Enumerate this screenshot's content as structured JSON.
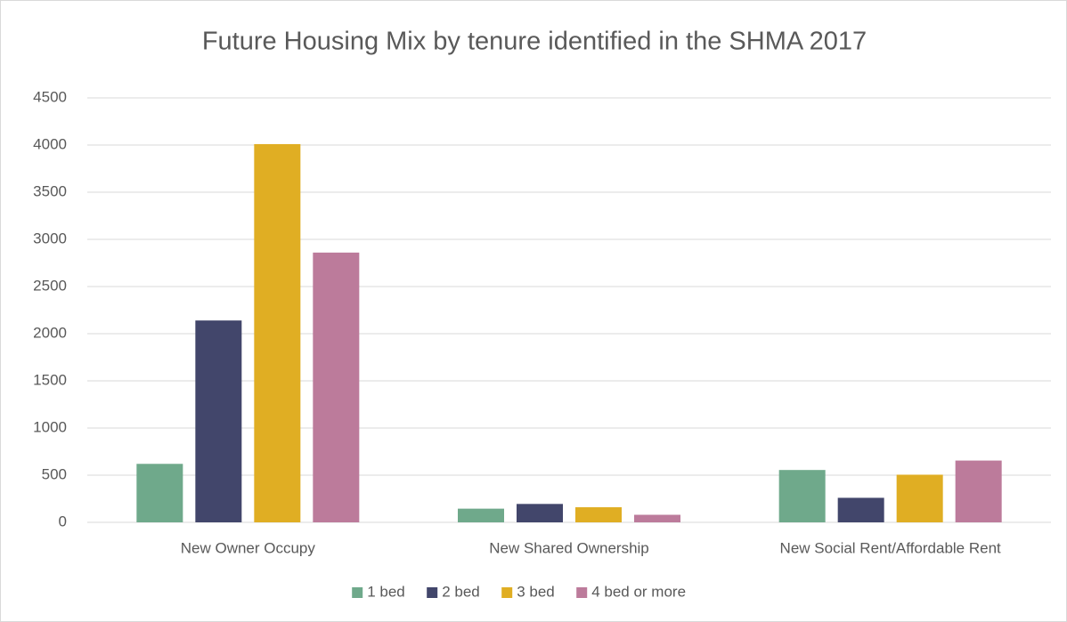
{
  "chart_data": {
    "type": "bar",
    "title": "Future Housing Mix by tenure identified in the SHMA 2017",
    "categories": [
      "New Owner Occupy",
      "New Shared Ownership",
      "New Social Rent/Affordable Rent"
    ],
    "series": [
      {
        "name": "1 bed",
        "color": "#6fa98b",
        "values": [
          620,
          145,
          555
        ]
      },
      {
        "name": "2 bed",
        "color": "#42466b",
        "values": [
          2140,
          195,
          260
        ]
      },
      {
        "name": "3 bed",
        "color": "#e0ae23",
        "values": [
          4010,
          160,
          505
        ]
      },
      {
        "name": "4 bed or more",
        "color": "#bc7b9b",
        "values": [
          2860,
          80,
          655
        ]
      }
    ],
    "ylim": [
      0,
      4500
    ],
    "yticks": [
      0,
      500,
      1000,
      1500,
      2000,
      2500,
      3000,
      3500,
      4000,
      4500
    ],
    "grid": true,
    "legend": "bottom"
  }
}
